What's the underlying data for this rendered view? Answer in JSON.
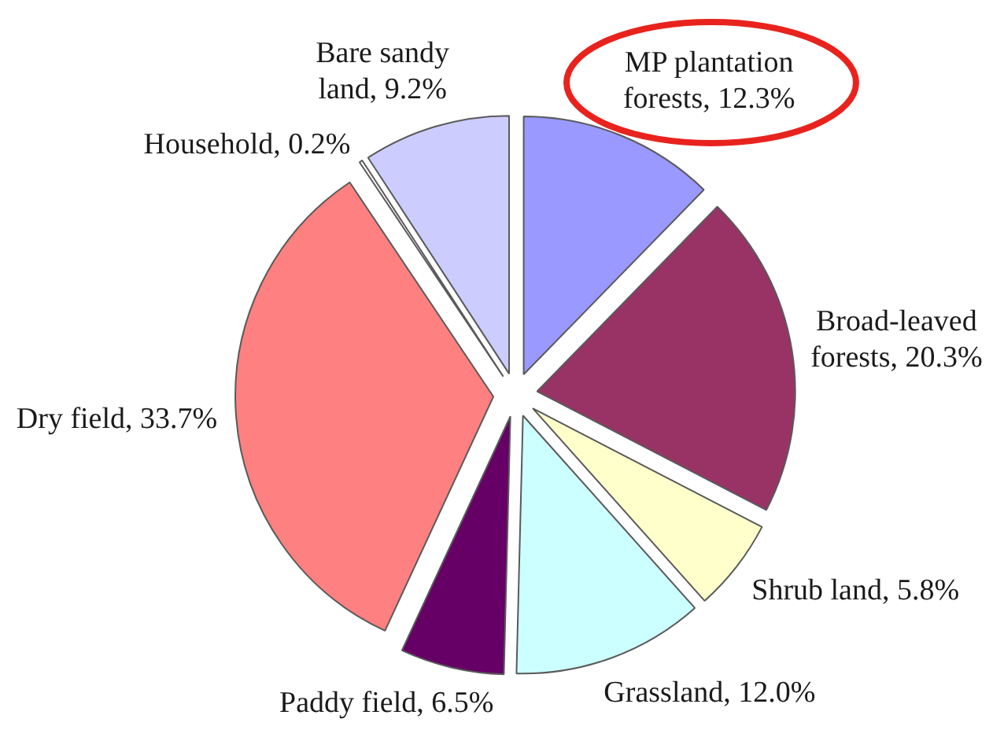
{
  "chart_data": {
    "type": "pie",
    "categories": [
      "MP plantation forests",
      "Broad-leaved forests",
      "Shrub land",
      "Grassland",
      "Paddy field",
      "Dry field",
      "Household",
      "Bare sandy land"
    ],
    "values": [
      12.3,
      20.3,
      5.8,
      12.0,
      6.5,
      33.7,
      0.2,
      9.2
    ],
    "colors": [
      "#9999ff",
      "#993366",
      "#ffffcc",
      "#ccffff",
      "#660066",
      "#ff8080",
      "#ffffff",
      "#ccccff"
    ],
    "value_labels": [
      "12.3%",
      "20.3%",
      "5.8%",
      "12.0%",
      "6.5%",
      "33.7%",
      "0.2%",
      "9.2%"
    ]
  }
}
